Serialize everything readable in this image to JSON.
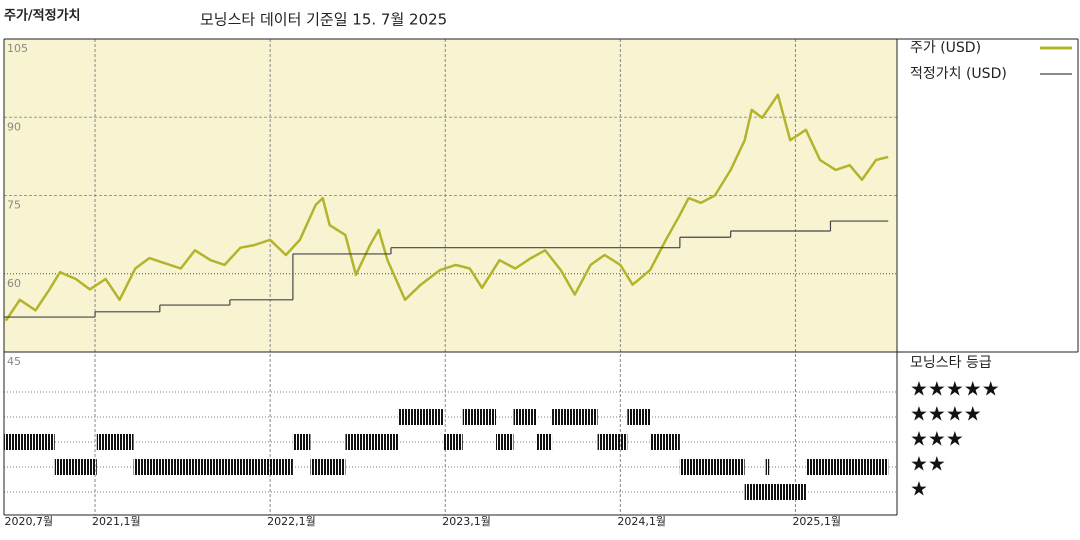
{
  "chart_data": [
    {
      "type": "line",
      "title": "주가/적정가치",
      "subtitle": "모닝스타 데이터 기준일 15. 7월 2025",
      "xlim": [
        2020.48,
        2025.58
      ],
      "xticks": [
        {
          "value": 2020.5,
          "label": "2020,7월"
        },
        {
          "value": 2021,
          "label": "2021,1월"
        },
        {
          "value": 2022,
          "label": "2022,1월"
        },
        {
          "value": 2023,
          "label": "2023,1월"
        },
        {
          "value": 2024,
          "label": "2024,1월"
        },
        {
          "value": 2025,
          "label": "2025,1월"
        }
      ],
      "ylim": [
        45,
        105
      ],
      "yticks": [
        45,
        60,
        75,
        90,
        105
      ],
      "grid": true,
      "background": "#f8f4d2",
      "series": [
        {
          "name": "주가 (USD)",
          "color": "#b3b42b",
          "x": [
            2020.49,
            2020.57,
            2020.66,
            2020.74,
            2020.8,
            2020.89,
            2020.97,
            2021.06,
            2021.14,
            2021.23,
            2021.31,
            2021.4,
            2021.49,
            2021.57,
            2021.66,
            2021.74,
            2021.83,
            2021.91,
            2022.0,
            2022.09,
            2022.17,
            2022.26,
            2022.3,
            2022.34,
            2022.43,
            2022.49,
            2022.57,
            2022.62,
            2022.67,
            2022.77,
            2022.86,
            2022.97,
            2023.06,
            2023.14,
            2023.21,
            2023.31,
            2023.4,
            2023.49,
            2023.57,
            2023.66,
            2023.74,
            2023.83,
            2023.91,
            2024.0,
            2024.07,
            2024.17,
            2024.26,
            2024.34,
            2024.39,
            2024.46,
            2024.54,
            2024.63,
            2024.71,
            2024.75,
            2024.81,
            2024.9,
            2024.97,
            2025.06,
            2025.14,
            2025.23,
            2025.31,
            2025.38,
            2025.46,
            2025.53
          ],
          "values": [
            51,
            55,
            53,
            57,
            60.3,
            59,
            57,
            59,
            55,
            61,
            63,
            62,
            61,
            64.5,
            62.6,
            61.7,
            65,
            65.5,
            66.5,
            63.6,
            66.5,
            73.2,
            74.5,
            69.3,
            67.4,
            59.8,
            65.5,
            68.4,
            62.6,
            55,
            57.9,
            60.7,
            61.7,
            61,
            57.3,
            62.6,
            61,
            63,
            64.5,
            60.7,
            56,
            61.7,
            63.6,
            61.7,
            57.9,
            60.7,
            66.5,
            71.3,
            74.5,
            73.6,
            75,
            79.9,
            85.6,
            91.4,
            89.9,
            94.3,
            85.6,
            87.6,
            81.8,
            79.9,
            80.8,
            78,
            81.8,
            82.4
          ]
        },
        {
          "name": "적정가치 (USD)",
          "color": "#444444",
          "step": "post",
          "x": [
            2020.48,
            2021.0,
            2021.37,
            2021.77,
            2022.13,
            2022.69,
            2024.34,
            2024.63,
            2025.2,
            2025.53
          ],
          "values": [
            51.7,
            52.7,
            54,
            55,
            63.8,
            65,
            67,
            68.2,
            70.1,
            70.1
          ]
        }
      ]
    },
    {
      "type": "timeline",
      "title": "모닝스타 등급",
      "color": "#111111",
      "levels": [
        5,
        4,
        3,
        2,
        1
      ],
      "level_labels": [
        "★★★★★",
        "★★★★",
        "★★★",
        "★★",
        "★"
      ],
      "periods": [
        {
          "start": 2020.48,
          "end": 2020.77,
          "stars": 3
        },
        {
          "start": 2020.77,
          "end": 2021.01,
          "stars": 2
        },
        {
          "start": 2021.01,
          "end": 2021.22,
          "stars": 3
        },
        {
          "start": 2021.22,
          "end": 2022.13,
          "stars": 2
        },
        {
          "start": 2022.13,
          "end": 2022.23,
          "stars": 3
        },
        {
          "start": 2022.23,
          "end": 2022.43,
          "stars": 2
        },
        {
          "start": 2022.43,
          "end": 2022.73,
          "stars": 3
        },
        {
          "start": 2022.73,
          "end": 2022.99,
          "stars": 4
        },
        {
          "start": 2022.99,
          "end": 2023.1,
          "stars": 3
        },
        {
          "start": 2023.1,
          "end": 2023.29,
          "stars": 4
        },
        {
          "start": 2023.29,
          "end": 2023.39,
          "stars": 3
        },
        {
          "start": 2023.39,
          "end": 2023.52,
          "stars": 4
        },
        {
          "start": 2023.52,
          "end": 2023.61,
          "stars": 3
        },
        {
          "start": 2023.61,
          "end": 2023.87,
          "stars": 4
        },
        {
          "start": 2023.87,
          "end": 2024.04,
          "stars": 3
        },
        {
          "start": 2024.04,
          "end": 2024.17,
          "stars": 4
        },
        {
          "start": 2024.17,
          "end": 2024.34,
          "stars": 3
        },
        {
          "start": 2024.34,
          "end": 2024.71,
          "stars": 2
        },
        {
          "start": 2024.71,
          "end": 2025.06,
          "stars": 1
        },
        {
          "start": 2024.83,
          "end": 2024.85,
          "stars": 2
        },
        {
          "start": 2025.06,
          "end": 2025.53,
          "stars": 2
        }
      ]
    }
  ]
}
